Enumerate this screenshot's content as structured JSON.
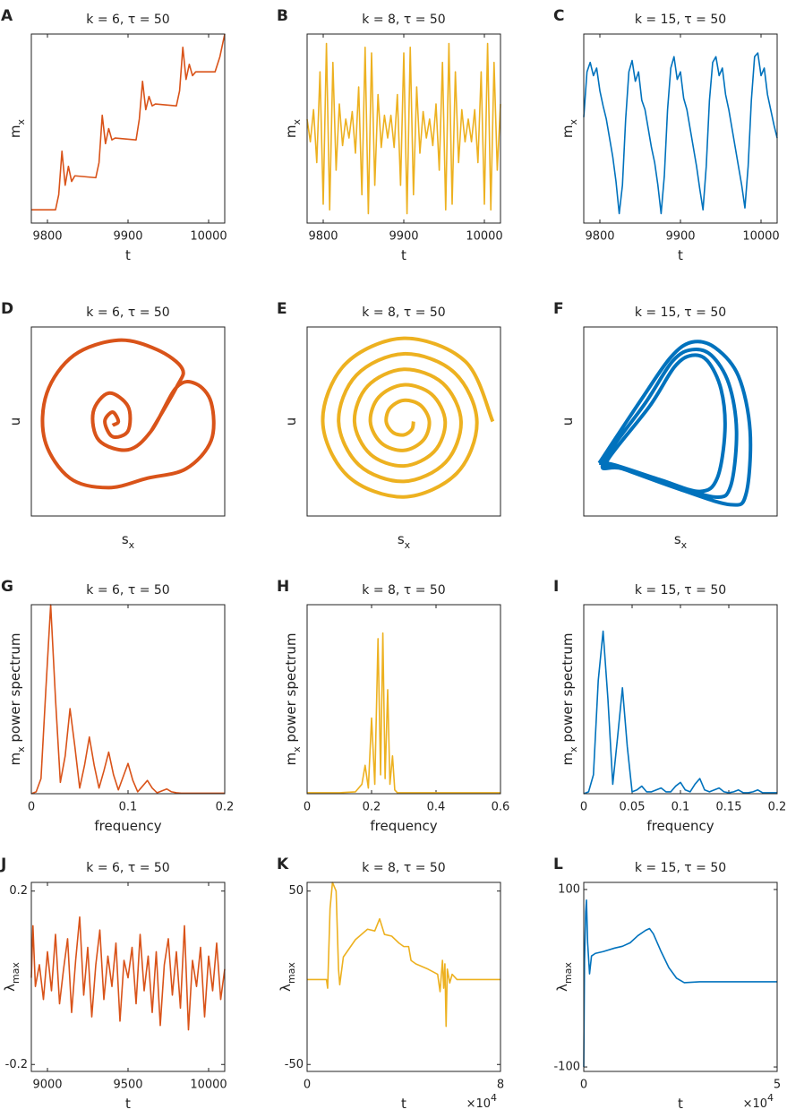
{
  "chart_data": [
    {
      "type": "line",
      "panel": "A",
      "title": "k = 6, τ = 50",
      "xlabel": [
        "t"
      ],
      "ylabel": [
        "m",
        "x"
      ],
      "color": "#d95319",
      "xlim": [
        9780,
        10020
      ],
      "xticks": [
        9800,
        9900,
        10000
      ],
      "ylim": [
        0,
        1
      ],
      "x": [
        9780,
        9810,
        9814,
        9818,
        9822,
        9826,
        9830,
        9834,
        9860,
        9864,
        9868,
        9872,
        9876,
        9880,
        9884,
        9910,
        9914,
        9918,
        9922,
        9926,
        9930,
        9934,
        9960,
        9964,
        9968,
        9972,
        9976,
        9980,
        9984,
        10008,
        10014,
        10020
      ],
      "values": [
        0.07,
        0.07,
        0.15,
        0.38,
        0.2,
        0.3,
        0.22,
        0.25,
        0.24,
        0.32,
        0.57,
        0.42,
        0.5,
        0.44,
        0.45,
        0.44,
        0.55,
        0.75,
        0.6,
        0.67,
        0.62,
        0.63,
        0.62,
        0.7,
        0.93,
        0.76,
        0.84,
        0.78,
        0.8,
        0.8,
        0.88,
        1.0
      ]
    },
    {
      "type": "line",
      "panel": "B",
      "title": "k = 8, τ = 50",
      "xlabel": [
        "t"
      ],
      "ylabel": [
        "m",
        "x"
      ],
      "color": "#edb120",
      "xlim": [
        9780,
        10020
      ],
      "xticks": [
        9800,
        9900,
        10000
      ],
      "ylim": [
        0,
        1
      ],
      "x": [
        9780,
        9784,
        9788,
        9792,
        9796,
        9800,
        9804,
        9808,
        9812,
        9816,
        9820,
        9824,
        9828,
        9832,
        9836,
        9840,
        9844,
        9848,
        9852,
        9856,
        9860,
        9864,
        9868,
        9872,
        9876,
        9880,
        9884,
        9888,
        9892,
        9896,
        9900,
        9904,
        9908,
        9912,
        9916,
        9920,
        9924,
        9928,
        9932,
        9936,
        9940,
        9944,
        9948,
        9952,
        9956,
        9960,
        9964,
        9968,
        9972,
        9976,
        9980,
        9984,
        9988,
        9992,
        9996,
        10000,
        10004,
        10008,
        10012,
        10016,
        10020
      ],
      "values": [
        0.55,
        0.43,
        0.6,
        0.32,
        0.8,
        0.1,
        0.95,
        0.07,
        0.85,
        0.28,
        0.63,
        0.41,
        0.55,
        0.45,
        0.59,
        0.37,
        0.72,
        0.15,
        0.93,
        0.05,
        0.9,
        0.2,
        0.68,
        0.4,
        0.57,
        0.45,
        0.57,
        0.4,
        0.68,
        0.2,
        0.9,
        0.05,
        0.93,
        0.15,
        0.72,
        0.37,
        0.59,
        0.45,
        0.55,
        0.41,
        0.63,
        0.28,
        0.85,
        0.07,
        0.95,
        0.1,
        0.8,
        0.32,
        0.6,
        0.43,
        0.55,
        0.43,
        0.6,
        0.32,
        0.8,
        0.1,
        0.95,
        0.07,
        0.85,
        0.28,
        0.63
      ]
    },
    {
      "type": "line",
      "panel": "C",
      "title": "k = 15, τ = 50",
      "xlabel": [
        "t"
      ],
      "ylabel": [
        "m",
        "x"
      ],
      "color": "#0072bd",
      "xlim": [
        9780,
        10020
      ],
      "xticks": [
        9800,
        9900,
        10000
      ],
      "ylim": [
        0,
        1
      ],
      "x": [
        9780,
        9784,
        9788,
        9792,
        9796,
        9800,
        9804,
        9808,
        9812,
        9816,
        9820,
        9824,
        9828,
        9832,
        9836,
        9840,
        9844,
        9848,
        9852,
        9856,
        9860,
        9864,
        9868,
        9872,
        9876,
        9880,
        9884,
        9888,
        9892,
        9896,
        9900,
        9904,
        9908,
        9912,
        9916,
        9920,
        9924,
        9928,
        9932,
        9936,
        9940,
        9944,
        9948,
        9952,
        9956,
        9960,
        9964,
        9968,
        9972,
        9976,
        9980,
        9984,
        9988,
        9992,
        9996,
        10000,
        10004,
        10008,
        10012,
        10016,
        10020
      ],
      "values": [
        0.56,
        0.8,
        0.85,
        0.78,
        0.82,
        0.7,
        0.62,
        0.55,
        0.45,
        0.35,
        0.22,
        0.05,
        0.2,
        0.55,
        0.8,
        0.86,
        0.75,
        0.8,
        0.65,
        0.6,
        0.5,
        0.4,
        0.32,
        0.2,
        0.05,
        0.25,
        0.6,
        0.82,
        0.88,
        0.76,
        0.8,
        0.66,
        0.6,
        0.5,
        0.4,
        0.3,
        0.18,
        0.07,
        0.3,
        0.65,
        0.85,
        0.88,
        0.78,
        0.82,
        0.68,
        0.6,
        0.5,
        0.4,
        0.3,
        0.2,
        0.08,
        0.3,
        0.65,
        0.88,
        0.9,
        0.78,
        0.82,
        0.68,
        0.6,
        0.52,
        0.45
      ]
    },
    {
      "type": "phase",
      "panel": "D",
      "title": "k = 6, τ = 50",
      "xlabel": [
        "s",
        "x"
      ],
      "ylabel": [
        "u"
      ],
      "color": "#d95319",
      "xlim": [
        0,
        1
      ],
      "ylim": [
        0,
        1
      ],
      "x": [
        0.42,
        0.45,
        0.42,
        0.38,
        0.42,
        0.5,
        0.5,
        0.4,
        0.32,
        0.35,
        0.5,
        0.62,
        0.75,
        0.85,
        0.93,
        0.93,
        0.8,
        0.6,
        0.4,
        0.2,
        0.07,
        0.08,
        0.22,
        0.45,
        0.65,
        0.78,
        0.75,
        0.62
      ],
      "values": [
        0.48,
        0.5,
        0.55,
        0.5,
        0.42,
        0.45,
        0.58,
        0.65,
        0.55,
        0.4,
        0.35,
        0.45,
        0.68,
        0.7,
        0.6,
        0.4,
        0.25,
        0.2,
        0.15,
        0.2,
        0.4,
        0.65,
        0.85,
        0.93,
        0.88,
        0.78,
        0.68,
        0.45
      ]
    },
    {
      "type": "phase",
      "panel": "E",
      "title": "k = 8, τ = 50",
      "xlabel": [
        "s",
        "x"
      ],
      "ylabel": [
        "u"
      ],
      "color": "#edb120",
      "xlim": [
        0,
        1
      ],
      "ylim": [
        0,
        1
      ],
      "x": [
        0.96,
        0.818,
        0.5,
        0.197,
        0.081,
        0.211,
        0.5,
        0.774,
        0.878,
        0.76,
        0.5,
        0.255,
        0.163,
        0.269,
        0.5,
        0.716,
        0.796,
        0.702,
        0.5,
        0.313,
        0.245,
        0.327,
        0.5,
        0.658,
        0.714,
        0.644,
        0.5,
        0.371,
        0.327,
        0.385,
        0.5,
        0.6,
        0.632,
        0.586,
        0.5,
        0.429,
        0.409,
        0.443,
        0.5,
        0.542,
        0.55
      ],
      "values": [
        0.5,
        0.818,
        0.94,
        0.803,
        0.5,
        0.211,
        0.101,
        0.226,
        0.5,
        0.76,
        0.858,
        0.745,
        0.5,
        0.269,
        0.183,
        0.284,
        0.5,
        0.702,
        0.776,
        0.687,
        0.5,
        0.327,
        0.265,
        0.342,
        0.5,
        0.644,
        0.694,
        0.629,
        0.5,
        0.385,
        0.347,
        0.4,
        0.5,
        0.586,
        0.612,
        0.571,
        0.5,
        0.443,
        0.429,
        0.458,
        0.5
      ]
    },
    {
      "type": "phase",
      "panel": "F",
      "title": "k = 15, τ = 50",
      "xlabel": [
        "s",
        "x"
      ],
      "ylabel": [
        "u"
      ],
      "color": "#0072bd",
      "xlim": [
        0,
        1
      ],
      "ylim": [
        0,
        1
      ],
      "x": [
        0.08,
        0.3,
        0.45,
        0.56,
        0.68,
        0.8,
        0.86,
        0.84,
        0.76,
        0.5,
        0.2,
        0.1,
        0.32,
        0.46,
        0.56,
        0.66,
        0.75,
        0.79,
        0.76,
        0.68,
        0.45,
        0.18,
        0.12,
        0.34,
        0.47,
        0.56,
        0.64,
        0.71,
        0.73,
        0.69,
        0.6,
        0.4,
        0.16,
        0.08
      ],
      "values": [
        0.28,
        0.62,
        0.84,
        0.92,
        0.89,
        0.74,
        0.45,
        0.12,
        0.06,
        0.14,
        0.25,
        0.28,
        0.6,
        0.82,
        0.88,
        0.85,
        0.7,
        0.45,
        0.16,
        0.1,
        0.17,
        0.26,
        0.29,
        0.58,
        0.79,
        0.85,
        0.82,
        0.67,
        0.45,
        0.2,
        0.13,
        0.19,
        0.27,
        0.28
      ]
    },
    {
      "type": "line",
      "panel": "G",
      "title": "k = 6, τ = 50",
      "xlabel": [
        "frequency"
      ],
      "ylabel": [
        "m",
        "x",
        " power spectrum"
      ],
      "color": "#d95319",
      "xlim": [
        0,
        0.2
      ],
      "xticks": [
        0,
        0.1,
        0.2
      ],
      "ylim": [
        0,
        1
      ],
      "x": [
        0,
        0.005,
        0.01,
        0.015,
        0.02,
        0.025,
        0.03,
        0.035,
        0.04,
        0.045,
        0.05,
        0.055,
        0.06,
        0.065,
        0.07,
        0.075,
        0.08,
        0.085,
        0.09,
        0.095,
        0.1,
        0.105,
        0.11,
        0.115,
        0.12,
        0.125,
        0.13,
        0.135,
        0.14,
        0.145,
        0.15,
        0.155,
        0.16,
        0.165,
        0.17,
        0.175,
        0.18,
        0.185,
        0.19,
        0.195,
        0.2
      ],
      "values": [
        0,
        0.01,
        0.08,
        0.55,
        1.0,
        0.5,
        0.06,
        0.2,
        0.45,
        0.25,
        0.03,
        0.15,
        0.3,
        0.15,
        0.03,
        0.12,
        0.22,
        0.1,
        0.02,
        0.09,
        0.16,
        0.07,
        0.01,
        0.04,
        0.07,
        0.03,
        0.005,
        0.015,
        0.025,
        0.01,
        0.005,
        0.003,
        0.003,
        0.003,
        0.003,
        0.003,
        0.003,
        0.003,
        0.003,
        0.003,
        0.003
      ]
    },
    {
      "type": "line",
      "panel": "H",
      "title": "k = 8, τ = 50",
      "xlabel": [
        "frequency"
      ],
      "ylabel": [
        "m",
        "x",
        " power spectrum"
      ],
      "color": "#edb120",
      "xlim": [
        0,
        0.6
      ],
      "xticks": [
        0,
        0.2,
        0.4,
        0.6
      ],
      "ylim": [
        0,
        1
      ],
      "x": [
        0,
        0.05,
        0.1,
        0.15,
        0.17,
        0.18,
        0.19,
        0.2,
        0.21,
        0.22,
        0.228,
        0.235,
        0.242,
        0.25,
        0.257,
        0.265,
        0.272,
        0.28,
        0.3,
        0.35,
        0.4,
        0.5,
        0.6
      ],
      "values": [
        0.005,
        0.005,
        0.005,
        0.01,
        0.05,
        0.15,
        0.03,
        0.4,
        0.05,
        0.82,
        0.1,
        0.85,
        0.08,
        0.55,
        0.05,
        0.2,
        0.02,
        0.005,
        0.005,
        0.005,
        0.005,
        0.005,
        0.005
      ]
    },
    {
      "type": "line",
      "panel": "I",
      "title": "k = 15, τ = 50",
      "xlabel": [
        "frequency"
      ],
      "ylabel": [
        "m",
        "x",
        " power spectrum"
      ],
      "color": "#0072bd",
      "xlim": [
        0,
        0.2
      ],
      "xticks": [
        0,
        0.05,
        0.1,
        0.15,
        0.2
      ],
      "ylim": [
        0,
        1
      ],
      "x": [
        0,
        0.005,
        0.01,
        0.015,
        0.02,
        0.025,
        0.03,
        0.035,
        0.04,
        0.045,
        0.05,
        0.055,
        0.06,
        0.065,
        0.07,
        0.075,
        0.08,
        0.085,
        0.09,
        0.095,
        0.1,
        0.105,
        0.11,
        0.115,
        0.12,
        0.125,
        0.13,
        0.135,
        0.14,
        0.145,
        0.15,
        0.155,
        0.16,
        0.165,
        0.17,
        0.175,
        0.18,
        0.185,
        0.19,
        0.195,
        0.2
      ],
      "values": [
        0,
        0.01,
        0.1,
        0.6,
        0.86,
        0.5,
        0.05,
        0.3,
        0.56,
        0.25,
        0.01,
        0.02,
        0.04,
        0.01,
        0.01,
        0.02,
        0.03,
        0.01,
        0.01,
        0.04,
        0.06,
        0.02,
        0.01,
        0.05,
        0.08,
        0.02,
        0.01,
        0.02,
        0.03,
        0.01,
        0.005,
        0.01,
        0.02,
        0.005,
        0.005,
        0.01,
        0.02,
        0.005,
        0.005,
        0.005,
        0.005
      ]
    },
    {
      "type": "line",
      "panel": "J",
      "title": "k = 6, τ = 50",
      "xlabel": [
        "t"
      ],
      "ylabel": [
        "λ",
        "max"
      ],
      "color": "#d95319",
      "xlim": [
        8900,
        10100
      ],
      "xticks": [
        9000,
        9500,
        10000
      ],
      "ylim": [
        -0.216,
        0.22
      ],
      "yticks": [
        -0.2,
        0.2
      ],
      "x": [
        8900,
        8910,
        8925,
        8950,
        8975,
        9000,
        9025,
        9050,
        9075,
        9100,
        9125,
        9150,
        9175,
        9200,
        9225,
        9250,
        9275,
        9300,
        9325,
        9350,
        9375,
        9400,
        9425,
        9450,
        9475,
        9500,
        9525,
        9550,
        9575,
        9600,
        9625,
        9650,
        9675,
        9700,
        9725,
        9750,
        9775,
        9800,
        9825,
        9850,
        9875,
        9900,
        9925,
        9950,
        9975,
        10000,
        10025,
        10050,
        10075,
        10100
      ],
      "values": [
        0,
        0.12,
        -0.02,
        0.03,
        -0.05,
        0.06,
        -0.03,
        0.1,
        -0.06,
        0.02,
        0.09,
        -0.08,
        0.04,
        0.14,
        -0.04,
        0.07,
        -0.09,
        0.03,
        0.11,
        -0.05,
        0.05,
        -0.02,
        0.08,
        -0.1,
        0.04,
        0,
        0.07,
        -0.06,
        0.1,
        -0.03,
        0.05,
        -0.08,
        0.06,
        -0.11,
        0.03,
        0.09,
        -0.04,
        0.06,
        -0.07,
        0.12,
        -0.12,
        0.04,
        -0.02,
        0.07,
        -0.09,
        0.05,
        -0.03,
        0.08,
        -0.05,
        0.02
      ]
    },
    {
      "type": "line",
      "panel": "K",
      "title": "k = 8, τ = 50",
      "xlabel": [
        "t"
      ],
      "ylabel": [
        "λ",
        "max"
      ],
      "x_multiplier": [
        "×10",
        "4"
      ],
      "color": "#edb120",
      "xlim": [
        0,
        8
      ],
      "xticks": [
        0,
        8
      ],
      "ylim": [
        -54,
        55
      ],
      "yticks": [
        -50,
        50
      ],
      "x": [
        0,
        0.5,
        0.8,
        0.85,
        0.95,
        1.05,
        1.2,
        1.3,
        1.35,
        1.5,
        2.0,
        2.5,
        2.8,
        3.0,
        3.2,
        3.5,
        3.8,
        4.0,
        4.2,
        4.3,
        4.5,
        5.0,
        5.4,
        5.5,
        5.6,
        5.65,
        5.7,
        5.75,
        5.8,
        5.9,
        6.0,
        6.2,
        6.5,
        7,
        8
      ],
      "values": [
        -1,
        -1,
        -1,
        -6,
        40,
        55,
        50,
        5,
        -4,
        12,
        22,
        28,
        27,
        34,
        25,
        24,
        20,
        18,
        18,
        10,
        8,
        5,
        2,
        -8,
        10,
        -6,
        8,
        -28,
        5,
        -3,
        2,
        -1,
        -1,
        -1,
        -1
      ]
    },
    {
      "type": "line",
      "panel": "L",
      "title": "k = 15, τ = 50",
      "xlabel": [
        "t"
      ],
      "ylabel": [
        "λ",
        "max"
      ],
      "x_multiplier": [
        "×10",
        "4"
      ],
      "color": "#0072bd",
      "xlim": [
        0,
        5
      ],
      "xticks": [
        0,
        5
      ],
      "ylim": [
        -105,
        108
      ],
      "yticks": [
        -100,
        100
      ],
      "x": [
        0,
        0.02,
        0.05,
        0.07,
        0.1,
        0.15,
        0.2,
        0.3,
        0.5,
        0.8,
        1.0,
        1.2,
        1.4,
        1.6,
        1.7,
        1.8,
        2.0,
        2.2,
        2.4,
        2.6,
        3,
        4,
        5
      ],
      "values": [
        -100,
        20,
        75,
        88,
        40,
        5,
        25,
        28,
        30,
        34,
        36,
        40,
        48,
        54,
        56,
        50,
        30,
        12,
        0,
        -5,
        -4,
        -4,
        -4
      ]
    }
  ]
}
